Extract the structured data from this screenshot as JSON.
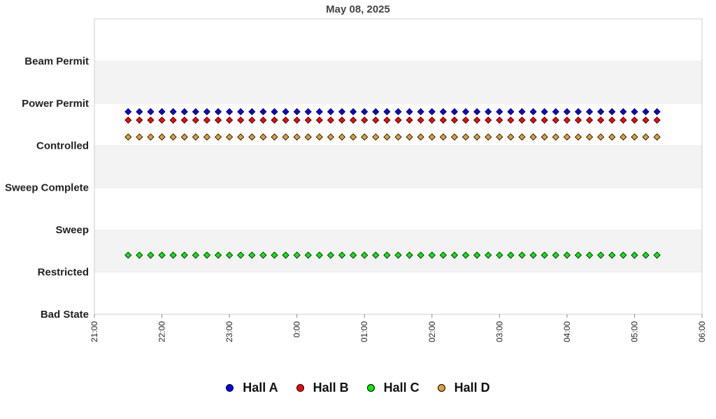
{
  "chart_data": {
    "type": "scatter",
    "title": "May 08, 2025",
    "xlabel": "",
    "ylabel": "",
    "x_ticks": [
      "21:00",
      "22:00",
      "23:00",
      "0:00",
      "01:00",
      "02:00",
      "03:00",
      "04:00",
      "05:00",
      "06:00"
    ],
    "xlim": [
      "2025-05-07T21:00",
      "2025-05-08T06:00"
    ],
    "y_categories": [
      "Bad State",
      "Restricted",
      "Sweep",
      "Sweep Complete",
      "Controlled",
      "Power Permit",
      "Beam Permit"
    ],
    "ylim": [
      0,
      7
    ],
    "grid": "alternating horizontal bands",
    "legend_position": "bottom",
    "sample_interval_minutes": 10,
    "series": [
      {
        "name": "Hall A",
        "color": "#0000ff",
        "x_start": "2025-05-07T21:30",
        "x_end": "2025-05-08T05:20",
        "value": 4.8
      },
      {
        "name": "Hall B",
        "color": "#ff0000",
        "x_start": "2025-05-07T21:30",
        "x_end": "2025-05-08T05:20",
        "value": 4.6
      },
      {
        "name": "Hall C",
        "color": "#00ee00",
        "x_start": "2025-05-07T21:30",
        "x_end": "2025-05-08T05:20",
        "value": 1.4
      },
      {
        "name": "Hall D",
        "color": "#e0a030",
        "x_start": "2025-05-07T21:30",
        "x_end": "2025-05-08T05:20",
        "value": 4.2
      }
    ]
  }
}
